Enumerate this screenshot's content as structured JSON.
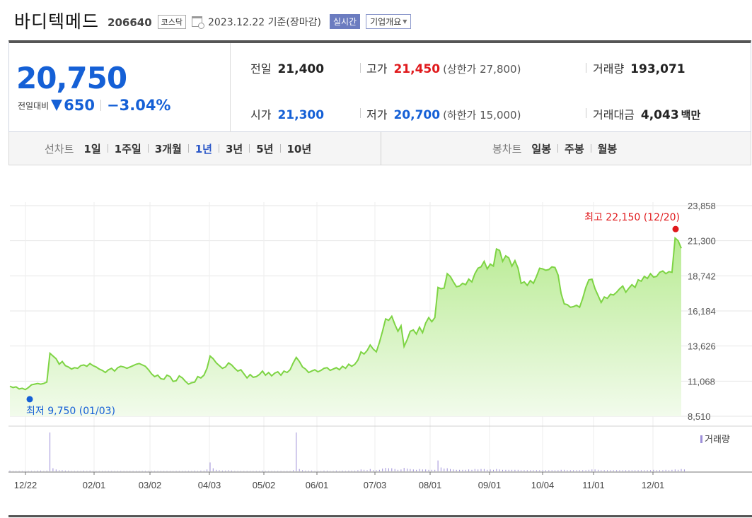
{
  "header": {
    "name": "바디텍메드",
    "code": "206640",
    "market": "코스닥",
    "date": "2023.12.22",
    "basis": "기준(장마감)",
    "realtime_label": "실시간",
    "corp_overview_label": "기업개요"
  },
  "summary": {
    "price": "20,750",
    "change_label": "전일대비",
    "change_amount": "650",
    "change_pct": "−3.04%",
    "prev_close_label": "전일",
    "prev_close": "21,400",
    "high_label": "고가",
    "high": "21,450",
    "upper_limit": "(상한가 27,800)",
    "volume_label": "거래량",
    "volume": "193,071",
    "open_label": "시가",
    "open": "21,300",
    "low_label": "저가",
    "low": "20,700",
    "lower_limit": "(하한가 15,000)",
    "amount_label": "거래대금",
    "amount": "4,043",
    "amount_unit": "백만"
  },
  "periods": {
    "line_label": "선차트",
    "line_options": [
      "1일",
      "1주일",
      "3개월",
      "1년",
      "3년",
      "5년",
      "10년"
    ],
    "line_selected": "1년",
    "candle_label": "봉차트",
    "candle_options": [
      "일봉",
      "주봉",
      "월봉"
    ]
  },
  "colors": {
    "down": "#1560d6",
    "up": "#e0191c",
    "line": "#7ed444",
    "fill_top": "#b8eb92",
    "fill_bottom": "#f2fbec",
    "volume_bar": "#9d8fd8",
    "high_marker": "#e0191c",
    "low_marker": "#1560d6"
  },
  "chart_data": {
    "type": "area",
    "ylim": [
      8510,
      23858
    ],
    "yticks": [
      "23,858",
      "21,300",
      "18,742",
      "16,184",
      "13,626",
      "11,068",
      "8,510"
    ],
    "xticks": [
      "12/22",
      "02/01",
      "03/02",
      "04/03",
      "05/02",
      "06/01",
      "07/03",
      "08/01",
      "09/01",
      "10/04",
      "11/01",
      "12/01"
    ],
    "series": [
      {
        "values": [
          10700,
          10600,
          10650,
          10500,
          10550,
          10450,
          10600,
          10800,
          10850,
          10900,
          10850,
          10900,
          11000,
          13100,
          12900,
          12700,
          12300,
          12500,
          12200,
          12100,
          11950,
          12050,
          12000,
          12200,
          12250,
          12150,
          12350,
          12200,
          12100,
          11950,
          11850,
          11700,
          11900,
          12000,
          11800,
          12050,
          12150,
          12100,
          12000,
          12100,
          12200,
          12300,
          12350,
          12250,
          12150,
          11900,
          11600,
          11400,
          11500,
          11250,
          11200,
          11500,
          11400,
          11050,
          11100,
          11450,
          11300,
          11050,
          10850,
          10950,
          11000,
          11400,
          11300,
          11500,
          12000,
          12900,
          12700,
          12400,
          12200,
          12000,
          12100,
          12400,
          12250,
          12000,
          11800,
          11900,
          11600,
          11300,
          11550,
          11350,
          11400,
          11550,
          11800,
          11500,
          11700,
          11450,
          11650,
          11750,
          11500,
          11800,
          11700,
          11900,
          12400,
          12800,
          12500,
          12100,
          11950,
          11700,
          11800,
          11900,
          11750,
          11850,
          12000,
          12050,
          11850,
          11950,
          12050,
          11900,
          12150,
          12000,
          12300,
          12150,
          12300,
          12600,
          13200,
          13050,
          13300,
          13700,
          13400,
          13200,
          13900,
          14700,
          15600,
          15500,
          15800,
          15200,
          14700,
          15100,
          13600,
          14100,
          14700,
          14800,
          14500,
          15000,
          14600,
          15300,
          15700,
          15400,
          15700,
          17900,
          17800,
          17850,
          18900,
          18700,
          18300,
          17950,
          18000,
          18200,
          18100,
          18500,
          18300,
          18900,
          19300,
          19400,
          19800,
          19250,
          19600,
          19450,
          20700,
          20600,
          19800,
          20200,
          20050,
          19450,
          19850,
          19300,
          18200,
          18300,
          18050,
          18400,
          18200,
          18700,
          19300,
          19250,
          19150,
          19200,
          19400,
          19350,
          18800,
          17450,
          16700,
          16650,
          16450,
          16500,
          16600,
          16450,
          17100,
          17900,
          18450,
          18500,
          17800,
          17300,
          16800,
          17200,
          17100,
          17400,
          17350,
          17550,
          17800,
          18000,
          17550,
          17850,
          18100,
          17900,
          18450,
          18350,
          18700,
          18550,
          18900,
          18650,
          18700,
          19000,
          19100,
          18900,
          19050,
          19000,
          21500,
          21300,
          20750
        ]
      }
    ],
    "volume_ylim": [
      0,
      100
    ],
    "volume_values": [
      2,
      1,
      1,
      1,
      1,
      1,
      1,
      1,
      1,
      2,
      2,
      1,
      2,
      100,
      8,
      5,
      3,
      3,
      2,
      2,
      1,
      1,
      1,
      1,
      2,
      1,
      2,
      1,
      1,
      1,
      1,
      1,
      1,
      1,
      1,
      1,
      1,
      1,
      1,
      1,
      1,
      1,
      1,
      1,
      1,
      1,
      1,
      1,
      1,
      1,
      1,
      1,
      1,
      1,
      1,
      1,
      1,
      1,
      1,
      1,
      2,
      1,
      2,
      2,
      5,
      23,
      8,
      4,
      3,
      2,
      2,
      3,
      2,
      1,
      1,
      1,
      1,
      1,
      1,
      1,
      1,
      1,
      2,
      1,
      1,
      1,
      1,
      1,
      1,
      1,
      1,
      1,
      3,
      100,
      6,
      3,
      2,
      2,
      2,
      1,
      1,
      1,
      2,
      2,
      1,
      1,
      2,
      1,
      2,
      1,
      2,
      2,
      2,
      3,
      5,
      4,
      3,
      6,
      3,
      3,
      4,
      7,
      9,
      8,
      8,
      6,
      4,
      5,
      9,
      7,
      6,
      5,
      4,
      6,
      5,
      5,
      4,
      4,
      4,
      28,
      10,
      7,
      8,
      6,
      5,
      4,
      4,
      4,
      4,
      5,
      4,
      6,
      5,
      6,
      6,
      4,
      5,
      4,
      6,
      5,
      4,
      4,
      4,
      4,
      4,
      4,
      3,
      3,
      3,
      3,
      3,
      3,
      3,
      3,
      3,
      3,
      3,
      3,
      3,
      4,
      4,
      3,
      3,
      3,
      3,
      3,
      3,
      3,
      4,
      5,
      5,
      4,
      3,
      3,
      3,
      3,
      3,
      3,
      3,
      3,
      3,
      3,
      3,
      3,
      3,
      3,
      3,
      3,
      3,
      4,
      3,
      3,
      3,
      4,
      3,
      4,
      5,
      4,
      6,
      5
    ],
    "volume_label": "거래량",
    "annotations": {
      "high_label": "최고 22,150 (12/20)",
      "high_value": 22150,
      "low_label": "최저 9,750 (01/03)",
      "low_value": 9750
    }
  }
}
